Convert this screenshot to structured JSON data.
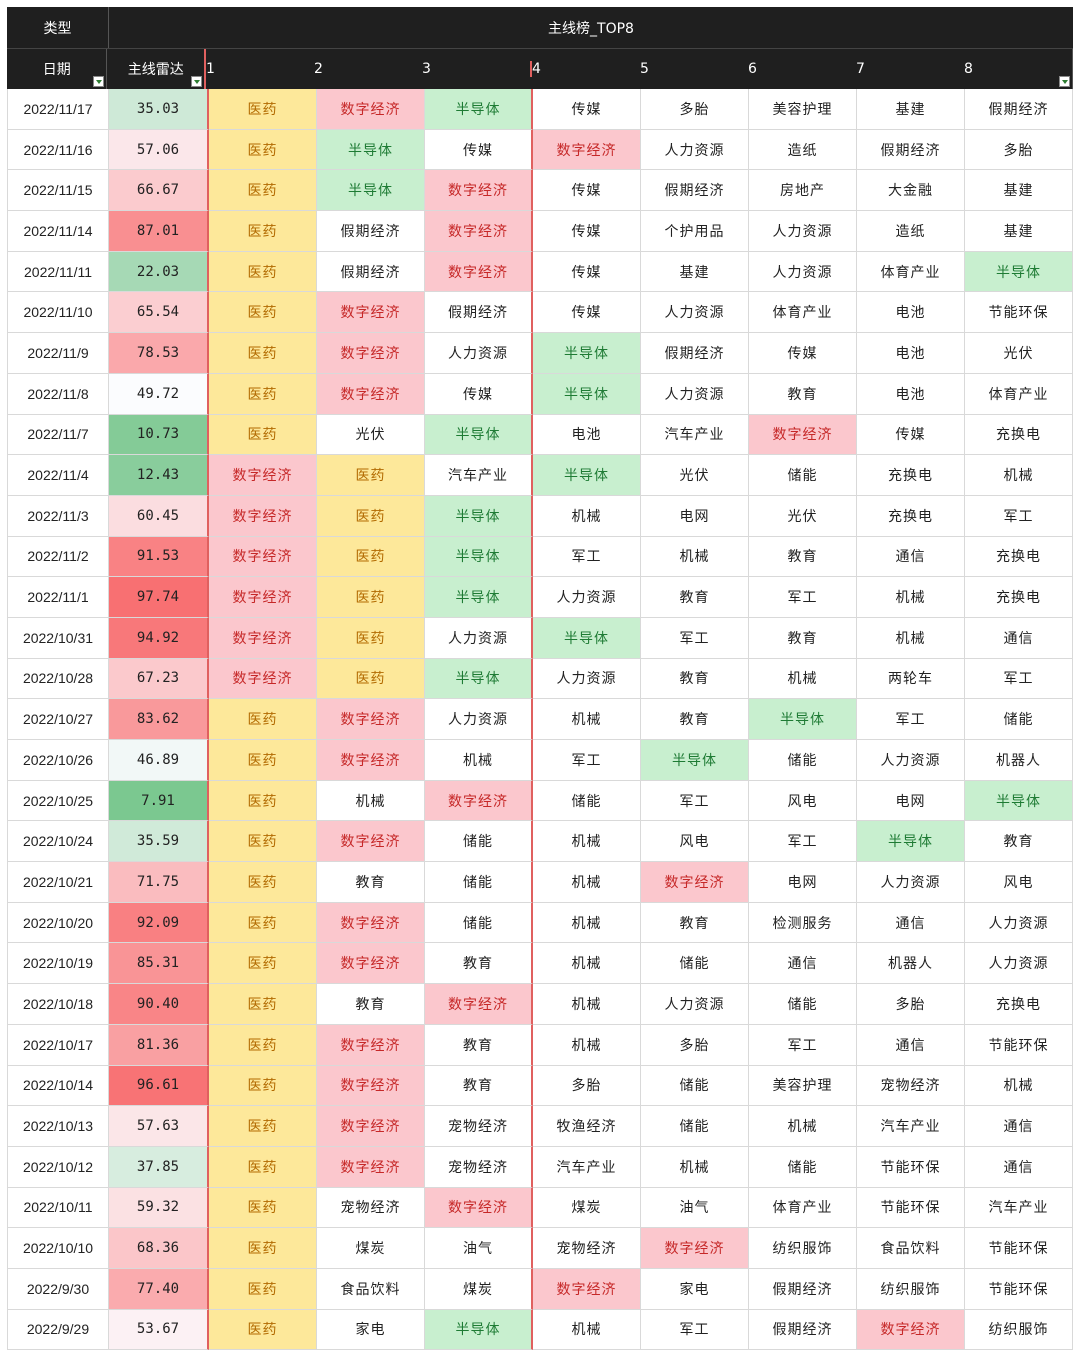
{
  "header": {
    "type_label": "类型",
    "group_title": "主线榜_TOP8",
    "date_label": "日期",
    "radar_label": "主线雷达",
    "ranks": [
      "1",
      "2",
      "3",
      "4",
      "5",
      "6",
      "7",
      "8"
    ]
  },
  "colors": {
    "医药": "yellow",
    "数字经济": "pink",
    "半导体": "green"
  },
  "rows": [
    {
      "date": "2022/11/17",
      "radar": "35.03",
      "items": [
        "医药",
        "数字经济",
        "半导体",
        "传媒",
        "多胎",
        "美容护理",
        "基建",
        "假期经济"
      ]
    },
    {
      "date": "2022/11/16",
      "radar": "57.06",
      "items": [
        "医药",
        "半导体",
        "传媒",
        "数字经济",
        "人力资源",
        "造纸",
        "假期经济",
        "多胎"
      ]
    },
    {
      "date": "2022/11/15",
      "radar": "66.67",
      "items": [
        "医药",
        "半导体",
        "数字经济",
        "传媒",
        "假期经济",
        "房地产",
        "大金融",
        "基建"
      ]
    },
    {
      "date": "2022/11/14",
      "radar": "87.01",
      "items": [
        "医药",
        "假期经济",
        "数字经济",
        "传媒",
        "个护用品",
        "人力资源",
        "造纸",
        "基建"
      ]
    },
    {
      "date": "2022/11/11",
      "radar": "22.03",
      "items": [
        "医药",
        "假期经济",
        "数字经济",
        "传媒",
        "基建",
        "人力资源",
        "体育产业",
        "半导体"
      ]
    },
    {
      "date": "2022/11/10",
      "radar": "65.54",
      "items": [
        "医药",
        "数字经济",
        "假期经济",
        "传媒",
        "人力资源",
        "体育产业",
        "电池",
        "节能环保"
      ]
    },
    {
      "date": "2022/11/9",
      "radar": "78.53",
      "items": [
        "医药",
        "数字经济",
        "人力资源",
        "半导体",
        "假期经济",
        "传媒",
        "电池",
        "光伏"
      ]
    },
    {
      "date": "2022/11/8",
      "radar": "49.72",
      "items": [
        "医药",
        "数字经济",
        "传媒",
        "半导体",
        "人力资源",
        "教育",
        "电池",
        "体育产业"
      ]
    },
    {
      "date": "2022/11/7",
      "radar": "10.73",
      "items": [
        "医药",
        "光伏",
        "半导体",
        "电池",
        "汽车产业",
        "数字经济",
        "传媒",
        "充换电"
      ]
    },
    {
      "date": "2022/11/4",
      "radar": "12.43",
      "items": [
        "数字经济",
        "医药",
        "汽车产业",
        "半导体",
        "光伏",
        "储能",
        "充换电",
        "机械"
      ]
    },
    {
      "date": "2022/11/3",
      "radar": "60.45",
      "items": [
        "数字经济",
        "医药",
        "半导体",
        "机械",
        "电网",
        "光伏",
        "充换电",
        "军工"
      ]
    },
    {
      "date": "2022/11/2",
      "radar": "91.53",
      "items": [
        "数字经济",
        "医药",
        "半导体",
        "军工",
        "机械",
        "教育",
        "通信",
        "充换电"
      ]
    },
    {
      "date": "2022/11/1",
      "radar": "97.74",
      "items": [
        "数字经济",
        "医药",
        "半导体",
        "人力资源",
        "教育",
        "军工",
        "机械",
        "充换电"
      ]
    },
    {
      "date": "2022/10/31",
      "radar": "94.92",
      "items": [
        "数字经济",
        "医药",
        "人力资源",
        "半导体",
        "军工",
        "教育",
        "机械",
        "通信"
      ]
    },
    {
      "date": "2022/10/28",
      "radar": "67.23",
      "items": [
        "数字经济",
        "医药",
        "半导体",
        "人力资源",
        "教育",
        "机械",
        "两轮车",
        "军工"
      ]
    },
    {
      "date": "2022/10/27",
      "radar": "83.62",
      "items": [
        "医药",
        "数字经济",
        "人力资源",
        "机械",
        "教育",
        "半导体",
        "军工",
        "储能"
      ]
    },
    {
      "date": "2022/10/26",
      "radar": "46.89",
      "items": [
        "医药",
        "数字经济",
        "机械",
        "军工",
        "半导体",
        "储能",
        "人力资源",
        "机器人"
      ]
    },
    {
      "date": "2022/10/25",
      "radar": "7.91",
      "items": [
        "医药",
        "机械",
        "数字经济",
        "储能",
        "军工",
        "风电",
        "电网",
        "半导体"
      ]
    },
    {
      "date": "2022/10/24",
      "radar": "35.59",
      "items": [
        "医药",
        "数字经济",
        "储能",
        "机械",
        "风电",
        "军工",
        "半导体",
        "教育"
      ]
    },
    {
      "date": "2022/10/21",
      "radar": "71.75",
      "items": [
        "医药",
        "教育",
        "储能",
        "机械",
        "数字经济",
        "电网",
        "人力资源",
        "风电"
      ]
    },
    {
      "date": "2022/10/20",
      "radar": "92.09",
      "items": [
        "医药",
        "数字经济",
        "储能",
        "机械",
        "教育",
        "检测服务",
        "通信",
        "人力资源"
      ]
    },
    {
      "date": "2022/10/19",
      "radar": "85.31",
      "items": [
        "医药",
        "数字经济",
        "教育",
        "机械",
        "储能",
        "通信",
        "机器人",
        "人力资源"
      ]
    },
    {
      "date": "2022/10/18",
      "radar": "90.40",
      "items": [
        "医药",
        "教育",
        "数字经济",
        "机械",
        "人力资源",
        "储能",
        "多胎",
        "充换电"
      ]
    },
    {
      "date": "2022/10/17",
      "radar": "81.36",
      "items": [
        "医药",
        "数字经济",
        "教育",
        "机械",
        "多胎",
        "军工",
        "通信",
        "节能环保"
      ]
    },
    {
      "date": "2022/10/14",
      "radar": "96.61",
      "items": [
        "医药",
        "数字经济",
        "教育",
        "多胎",
        "储能",
        "美容护理",
        "宠物经济",
        "机械"
      ]
    },
    {
      "date": "2022/10/13",
      "radar": "57.63",
      "items": [
        "医药",
        "数字经济",
        "宠物经济",
        "牧渔经济",
        "储能",
        "机械",
        "汽车产业",
        "通信"
      ]
    },
    {
      "date": "2022/10/12",
      "radar": "37.85",
      "items": [
        "医药",
        "数字经济",
        "宠物经济",
        "汽车产业",
        "机械",
        "储能",
        "节能环保",
        "通信"
      ]
    },
    {
      "date": "2022/10/11",
      "radar": "59.32",
      "items": [
        "医药",
        "宠物经济",
        "数字经济",
        "煤炭",
        "油气",
        "体育产业",
        "节能环保",
        "汽车产业"
      ]
    },
    {
      "date": "2022/10/10",
      "radar": "68.36",
      "items": [
        "医药",
        "煤炭",
        "油气",
        "宠物经济",
        "数字经济",
        "纺织服饰",
        "食品饮料",
        "节能环保"
      ]
    },
    {
      "date": "2022/9/30",
      "radar": "77.40",
      "items": [
        "医药",
        "食品饮料",
        "煤炭",
        "数字经济",
        "家电",
        "假期经济",
        "纺织服饰",
        "节能环保"
      ]
    },
    {
      "date": "2022/9/29",
      "radar": "53.67",
      "items": [
        "医药",
        "家电",
        "半导体",
        "机械",
        "军工",
        "假期经济",
        "数字经济",
        "纺织服饰"
      ]
    }
  ]
}
